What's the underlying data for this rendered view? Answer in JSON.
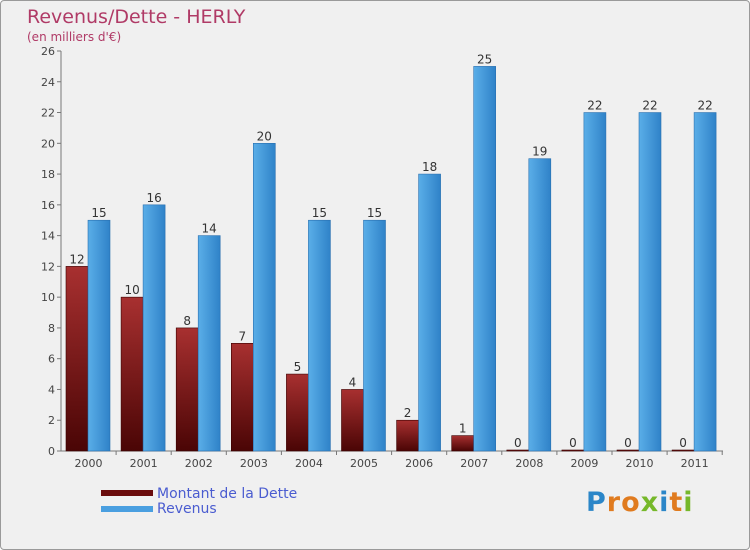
{
  "title": "Revenus/Dette - HERLY",
  "subtitle": "(en milliers d'€)",
  "colors": {
    "dette": "#7b1212",
    "revenus": "#3f94d8",
    "title": "#b03a66",
    "legend_text": "#4a5cd0"
  },
  "legend": {
    "dette_label": "Montant de la Dette",
    "revenus_label": "Revenus"
  },
  "logo": {
    "text": "Proxiti"
  },
  "chart_data": {
    "type": "bar",
    "categories": [
      "2000",
      "2001",
      "2002",
      "2003",
      "2004",
      "2005",
      "2006",
      "2007",
      "2008",
      "2009",
      "2010",
      "2011"
    ],
    "series": [
      {
        "name": "Montant de la Dette",
        "values": [
          12,
          10,
          8,
          7,
          5,
          4,
          2,
          1,
          0,
          0,
          0,
          0
        ]
      },
      {
        "name": "Revenus",
        "values": [
          15,
          16,
          14,
          20,
          15,
          15,
          18,
          25,
          19,
          22,
          22,
          22
        ]
      }
    ],
    "title": "Revenus/Dette - HERLY",
    "subtitle": "(en milliers d'€)",
    "xlabel": "",
    "ylabel": "",
    "ylim": [
      0,
      26
    ],
    "yticks": [
      0,
      2,
      4,
      6,
      8,
      10,
      12,
      14,
      16,
      18,
      20,
      22,
      24,
      26
    ],
    "grid": false,
    "legend_position": "bottom-left"
  }
}
